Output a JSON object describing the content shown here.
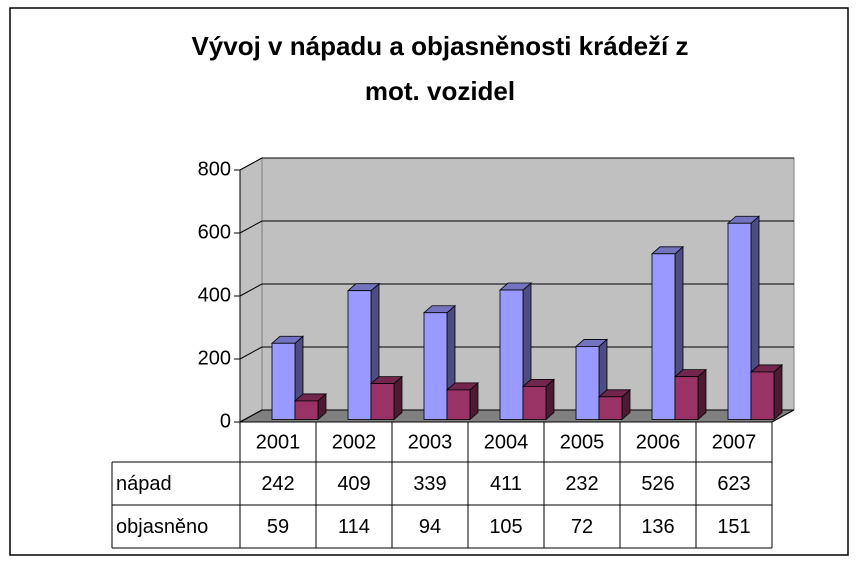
{
  "chart_data": {
    "type": "bar",
    "title": "Vývoj v nápadu a objasněnosti krádeží z mot. vozidel",
    "title_lines": [
      "Vývoj v nápadu a objasněnosti krádeží z",
      "mot. vozidel"
    ],
    "categories": [
      "2001",
      "2002",
      "2003",
      "2004",
      "2005",
      "2006",
      "2007"
    ],
    "series": [
      {
        "name": "nápad",
        "color": "#9999ff",
        "values": [
          242,
          409,
          339,
          411,
          232,
          526,
          623
        ]
      },
      {
        "name": "objasněno",
        "color": "#993366",
        "values": [
          59,
          114,
          94,
          105,
          72,
          136,
          151
        ]
      }
    ],
    "ylim": [
      0,
      800
    ],
    "yticks": [
      0,
      200,
      400,
      600,
      800
    ],
    "grid": true,
    "data_table": true
  }
}
